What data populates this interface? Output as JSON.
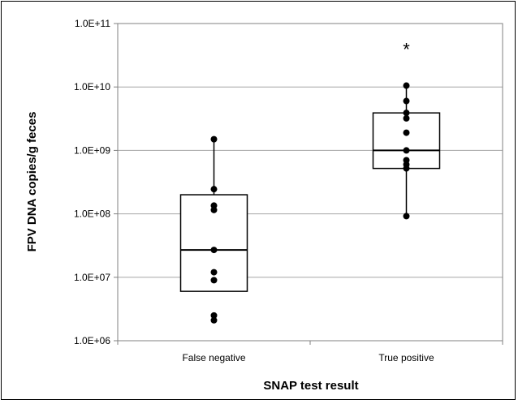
{
  "chart_data": {
    "type": "box",
    "title": "",
    "xlabel": "SNAP test result",
    "ylabel": "FPV DNA copies/g feces",
    "y_scale": "log",
    "ylim": [
      1000000,
      100000000000
    ],
    "y_ticks": [
      1000000,
      10000000,
      100000000,
      1000000000,
      10000000000,
      100000000000
    ],
    "y_tick_labels": [
      "1.0E+06",
      "1.0E+07",
      "1.0E+08",
      "1.0E+09",
      "1.0E+10",
      "1.0E+11"
    ],
    "grid": true,
    "categories": [
      "False negative",
      "True positive"
    ],
    "boxes": [
      {
        "q1": 6000000,
        "median": 27000000,
        "q3": 200000000,
        "whisker_low": 6000000,
        "whisker_high": 1500000000
      },
      {
        "q1": 520000000,
        "median": 1000000000,
        "q3": 3900000000,
        "whisker_low": 92000000,
        "whisker_high": 10500000000
      }
    ],
    "points": [
      [
        2100000,
        2500000,
        9000000,
        12000000,
        27000000,
        115000000,
        135000000,
        245000000,
        1500000000
      ],
      [
        92000000,
        520000000,
        600000000,
        700000000,
        1000000000,
        1900000000,
        3200000000,
        3900000000,
        6000000000,
        10500000000
      ]
    ],
    "annotations": [
      {
        "category": "True positive",
        "text": "*"
      }
    ]
  }
}
